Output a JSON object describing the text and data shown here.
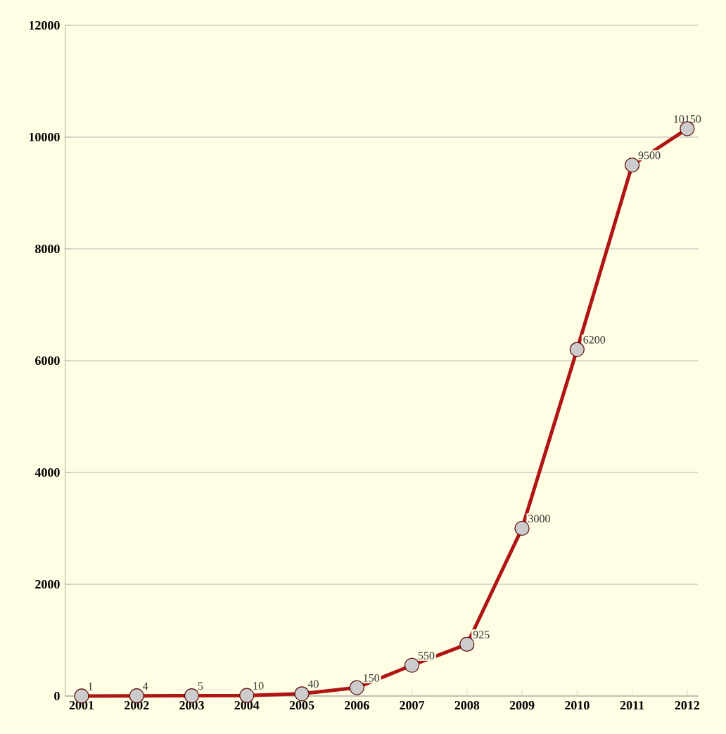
{
  "chart_data": {
    "type": "line",
    "categories": [
      "2001",
      "2002",
      "2003",
      "2004",
      "2005",
      "2006",
      "2007",
      "2008",
      "2009",
      "2010",
      "2011",
      "2012"
    ],
    "values": [
      1,
      4,
      5,
      10,
      40,
      150,
      550,
      925,
      3000,
      6200,
      9500,
      10150
    ],
    "color": "#b01515",
    "marker": "circle",
    "ylim": [
      0,
      12000
    ],
    "yticks": [
      0,
      2000,
      4000,
      6000,
      8000,
      10000,
      12000
    ],
    "grid": "y",
    "data_labels": true
  }
}
